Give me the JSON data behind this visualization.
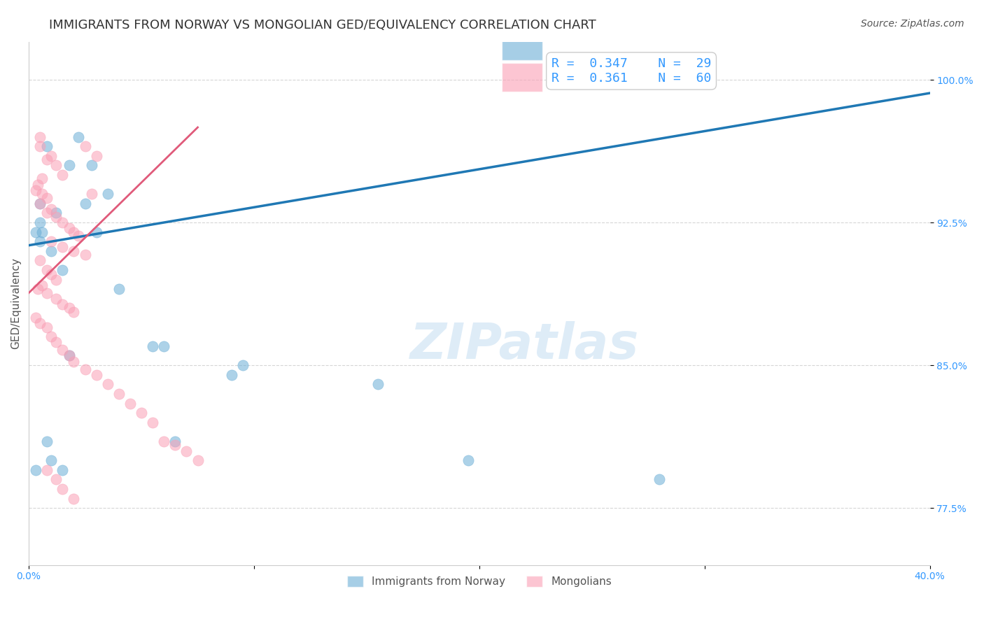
{
  "title": "IMMIGRANTS FROM NORWAY VS MONGOLIAN GED/EQUIVALENCY CORRELATION CHART",
  "source": "Source: ZipAtlas.com",
  "xlabel": "",
  "ylabel": "GED/Equivalency",
  "xlim": [
    0.0,
    0.4
  ],
  "ylim": [
    0.745,
    1.02
  ],
  "xtick_labels": [
    "0.0%",
    "",
    "",
    "",
    "40.0%"
  ],
  "xtick_positions": [
    0.0,
    0.1,
    0.2,
    0.3,
    0.4
  ],
  "ytick_labels": [
    "77.5%",
    "85.0%",
    "92.5%",
    "100.0%"
  ],
  "ytick_positions": [
    0.775,
    0.85,
    0.925,
    1.0
  ],
  "blue_scatter_x": [
    0.005,
    0.022,
    0.018,
    0.028,
    0.008,
    0.012,
    0.005,
    0.006,
    0.003,
    0.005,
    0.01,
    0.025,
    0.03,
    0.035,
    0.015,
    0.04,
    0.06,
    0.018,
    0.055,
    0.065,
    0.01,
    0.008,
    0.003,
    0.015,
    0.095,
    0.09,
    0.155,
    0.195,
    0.28
  ],
  "blue_scatter_y": [
    0.935,
    0.97,
    0.955,
    0.955,
    0.965,
    0.93,
    0.925,
    0.92,
    0.92,
    0.915,
    0.91,
    0.935,
    0.92,
    0.94,
    0.9,
    0.89,
    0.86,
    0.855,
    0.86,
    0.81,
    0.8,
    0.81,
    0.795,
    0.795,
    0.85,
    0.845,
    0.84,
    0.8,
    0.79
  ],
  "pink_scatter_x": [
    0.005,
    0.005,
    0.01,
    0.008,
    0.012,
    0.015,
    0.006,
    0.004,
    0.003,
    0.006,
    0.008,
    0.005,
    0.01,
    0.008,
    0.012,
    0.015,
    0.018,
    0.02,
    0.022,
    0.025,
    0.028,
    0.03,
    0.01,
    0.015,
    0.02,
    0.025,
    0.005,
    0.008,
    0.01,
    0.012,
    0.006,
    0.004,
    0.008,
    0.012,
    0.015,
    0.018,
    0.02,
    0.003,
    0.005,
    0.008,
    0.01,
    0.012,
    0.015,
    0.018,
    0.02,
    0.025,
    0.03,
    0.035,
    0.04,
    0.045,
    0.05,
    0.055,
    0.06,
    0.065,
    0.07,
    0.075,
    0.008,
    0.012,
    0.015,
    0.02
  ],
  "pink_scatter_y": [
    0.97,
    0.965,
    0.96,
    0.958,
    0.955,
    0.95,
    0.948,
    0.945,
    0.942,
    0.94,
    0.938,
    0.935,
    0.932,
    0.93,
    0.928,
    0.925,
    0.922,
    0.92,
    0.918,
    0.965,
    0.94,
    0.96,
    0.915,
    0.912,
    0.91,
    0.908,
    0.905,
    0.9,
    0.898,
    0.895,
    0.892,
    0.89,
    0.888,
    0.885,
    0.882,
    0.88,
    0.878,
    0.875,
    0.872,
    0.87,
    0.865,
    0.862,
    0.858,
    0.855,
    0.852,
    0.848,
    0.845,
    0.84,
    0.835,
    0.83,
    0.825,
    0.82,
    0.81,
    0.808,
    0.805,
    0.8,
    0.795,
    0.79,
    0.785,
    0.78
  ],
  "blue_line_x": [
    0.0,
    0.4
  ],
  "blue_line_y": [
    0.913,
    0.993
  ],
  "pink_line_x": [
    0.0,
    0.075
  ],
  "pink_line_y": [
    0.888,
    0.975
  ],
  "blue_color": "#6baed6",
  "pink_color": "#fa9fb5",
  "blue_line_color": "#1f78b4",
  "pink_line_color": "#e05a7a",
  "R_blue": "0.347",
  "N_blue": "29",
  "R_pink": "0.361",
  "N_pink": "60",
  "legend_blue_label": "Immigrants from Norway",
  "legend_pink_label": "Mongolians",
  "watermark": "ZIPatlas",
  "grid_color": "#cccccc",
  "background_color": "#ffffff",
  "title_fontsize": 13,
  "axis_label_fontsize": 11,
  "tick_fontsize": 10,
  "source_fontsize": 10
}
